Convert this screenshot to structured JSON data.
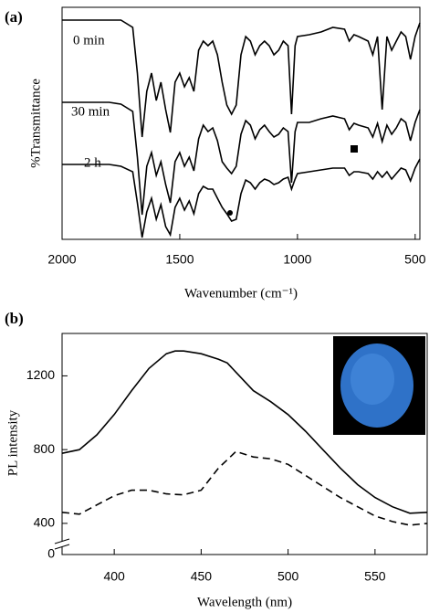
{
  "chart_data": [
    {
      "type": "line",
      "panel_label": "(a)",
      "xlabel": "Wavenumber (cm⁻¹)",
      "ylabel": "%Transmittance",
      "x": [
        2000,
        1900,
        1800,
        1750,
        1700,
        1680,
        1660,
        1640,
        1620,
        1600,
        1580,
        1560,
        1540,
        1520,
        1500,
        1480,
        1460,
        1440,
        1420,
        1400,
        1380,
        1360,
        1340,
        1320,
        1300,
        1280,
        1260,
        1240,
        1220,
        1200,
        1180,
        1160,
        1140,
        1120,
        1100,
        1080,
        1060,
        1040,
        1025,
        1010,
        1000,
        950,
        900,
        850,
        800,
        780,
        760,
        740,
        700,
        680,
        660,
        640,
        620,
        600,
        580,
        560,
        540,
        520,
        500,
        480
      ],
      "series": [
        {
          "name": "0 min",
          "color": "#000000",
          "values": [
            240,
            240,
            240,
            240,
            232,
            182,
            112,
            162,
            182,
            152,
            172,
            142,
            117,
            172,
            182,
            167,
            177,
            162,
            207,
            217,
            212,
            217,
            202,
            172,
            147,
            137,
            147,
            202,
            222,
            217,
            202,
            212,
            217,
            212,
            202,
            207,
            217,
            212,
            137,
            212,
            222,
            224,
            227,
            232,
            230,
            217,
            224,
            222,
            217,
            202,
            222,
            142,
            222,
            207,
            217,
            227,
            222,
            197,
            222,
            237
          ]
        },
        {
          "name": "30 min",
          "color": "#000000",
          "values": [
            150,
            150,
            150,
            148,
            140,
            90,
            27,
            80,
            95,
            70,
            85,
            60,
            40,
            85,
            95,
            80,
            90,
            75,
            110,
            125,
            118,
            122,
            108,
            85,
            78,
            72,
            80,
            115,
            130,
            125,
            110,
            120,
            125,
            118,
            112,
            115,
            122,
            118,
            62,
            118,
            128,
            128,
            132,
            135,
            132,
            120,
            127,
            125,
            122,
            112,
            127,
            107,
            125,
            115,
            122,
            132,
            128,
            108,
            128,
            142
          ]
        },
        {
          "name": "2 h",
          "color": "#000000",
          "values": [
            82,
            82,
            82,
            80,
            74,
            40,
            2,
            30,
            45,
            22,
            38,
            14,
            5,
            35,
            45,
            32,
            42,
            28,
            50,
            58,
            55,
            55,
            45,
            35,
            28,
            20,
            22,
            50,
            65,
            62,
            55,
            62,
            66,
            64,
            60,
            62,
            66,
            68,
            55,
            66,
            72,
            74,
            76,
            78,
            78,
            70,
            74,
            74,
            72,
            66,
            74,
            68,
            74,
            66,
            72,
            78,
            76,
            64,
            78,
            88
          ]
        }
      ],
      "xlim": [
        2000,
        480
      ],
      "xticks": [
        2000,
        1500,
        1000,
        500
      ],
      "ylim": [
        0,
        254
      ]
    },
    {
      "type": "line",
      "panel_label": "(b)",
      "xlabel": "Wavelength (nm)",
      "ylabel": "PL intensity",
      "x": [
        370,
        380,
        390,
        400,
        410,
        420,
        430,
        435,
        440,
        450,
        460,
        465,
        470,
        480,
        490,
        500,
        510,
        520,
        530,
        540,
        550,
        560,
        570,
        580
      ],
      "series": [
        {
          "color": "#000000",
          "values": [
            780,
            800,
            880,
            990,
            1120,
            1240,
            1320,
            1335,
            1335,
            1320,
            1290,
            1270,
            1220,
            1120,
            1060,
            990,
            900,
            800,
            700,
            610,
            540,
            490,
            455,
            460
          ]
        },
        {
          "color": "#000000",
          "dash": true,
          "values": [
            460,
            450,
            500,
            550,
            580,
            580,
            560,
            557,
            555,
            580,
            700,
            745,
            790,
            760,
            750,
            720,
            660,
            600,
            540,
            490,
            440,
            410,
            390,
            400
          ]
        }
      ],
      "xlim": [
        370,
        580
      ],
      "xticks": [
        400,
        450,
        500,
        550
      ],
      "ylim": [
        340,
        1430
      ],
      "yticks": [
        0,
        400,
        800,
        1200
      ]
    }
  ]
}
